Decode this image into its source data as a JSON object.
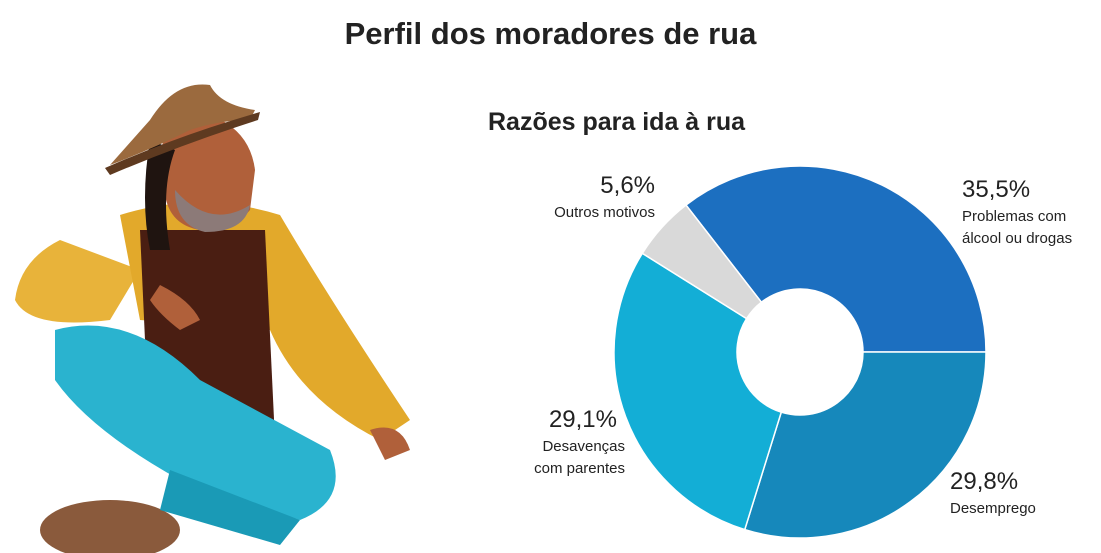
{
  "chart_data": {
    "type": "pie",
    "title": "Perfil dos moradores de rua",
    "subtitle": "Razões para ida à rua",
    "donut": true,
    "categories": [
      "Problemas com álcool ou drogas",
      "Desemprego",
      "Desavenças com parentes",
      "Outros motivos"
    ],
    "values": [
      35.5,
      29.8,
      29.1,
      5.6
    ],
    "value_labels": [
      "35,5%",
      "29,8%",
      "29,1%",
      "5,6%"
    ],
    "colors": [
      "#1c6fc0",
      "#1688bb",
      "#13aed6",
      "#d9d9d9"
    ]
  }
}
